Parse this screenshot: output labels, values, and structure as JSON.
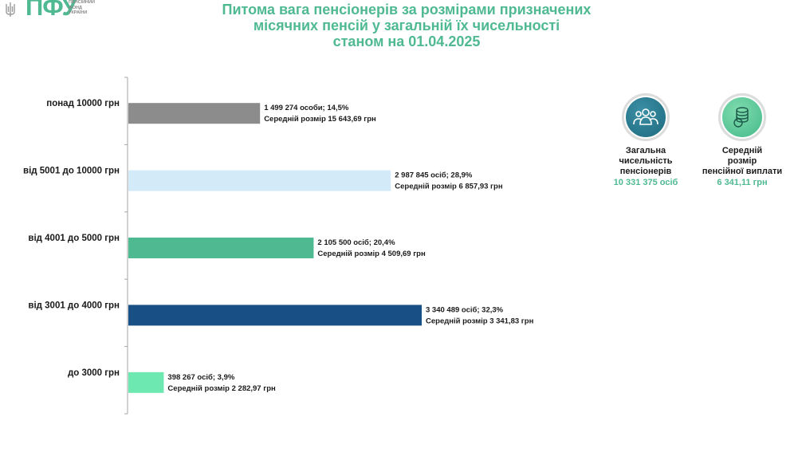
{
  "logo": {
    "abbr": "ПФУ",
    "sub": [
      "ПЕНСІЙНИЙ",
      "ФОНД",
      "УКРАЇНИ"
    ]
  },
  "title_lines": [
    "Питома вага пенсіонерів за розмірами призначених",
    "місячних пенсій у загальній їх чисельності",
    "станом на 01.04.2025"
  ],
  "kpis": {
    "total": {
      "label": [
        "Загальна",
        "чисельність",
        "пенсіонерів"
      ],
      "value": "10 331 375 осіб",
      "icon": "people-group-icon"
    },
    "average": {
      "label": [
        "Середній",
        "розмір",
        "пенсійної виплати"
      ],
      "value": "6 341,11 грн",
      "icon": "coins-icon"
    }
  },
  "chart_data": {
    "type": "bar",
    "orientation": "horizontal",
    "categories": [
      "понад 10000 грн",
      "від 5001 до 10000 грн",
      "від 4001 до 5000 грн",
      "від 3001 до 4000 грн",
      "до 3000 грн"
    ],
    "values": [
      14.5,
      28.9,
      20.4,
      32.3,
      3.9
    ],
    "counts": [
      1499274,
      2987845,
      2105500,
      3340489,
      398267
    ],
    "labels_line1": [
      "1 499 274 особи;  14,5%",
      "2 987 845 осіб; 28,9%",
      "2 105 500 осіб; 20,4%",
      "3 340 489 осіб; 32,3%",
      "398 267 осіб; 3,9%"
    ],
    "labels_line2": [
      "Середній розмір 15 643,69 грн",
      "Середній розмір 6 857,93 грн",
      "Середній розмір 4 509,69 грн",
      "Середній розмір 3 341,83 грн",
      "Середній розмір 2 282,97 грн"
    ],
    "colors": [
      "#8c8c8c",
      "#d3eaf8",
      "#4fb992",
      "#184f84",
      "#6ee8b1"
    ],
    "xlim": [
      0,
      32.3
    ],
    "grid": false,
    "legend": "none"
  }
}
